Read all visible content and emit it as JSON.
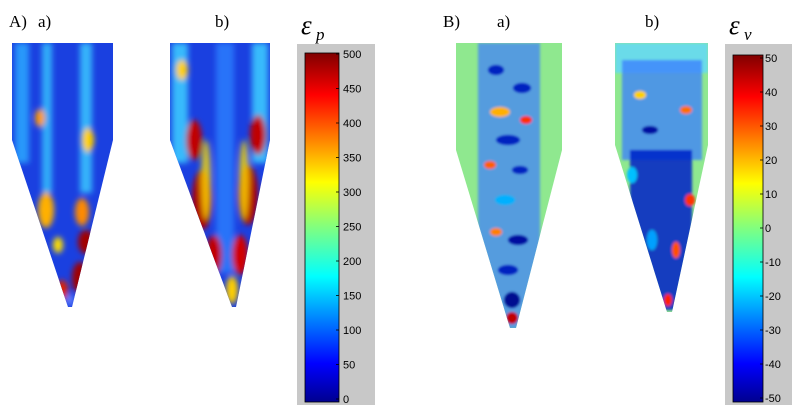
{
  "panel_A": {
    "label": "A)",
    "sub_a": "a)",
    "sub_b": "b)",
    "colorbar": {
      "symbol": "ε",
      "subscript": "p",
      "ticks": [
        "500",
        "450",
        "400",
        "350",
        "300",
        "250",
        "200",
        "150",
        "100",
        "50",
        "0"
      ]
    }
  },
  "panel_B": {
    "label": "B)",
    "sub_a": "a)",
    "sub_b": "b)",
    "colorbar": {
      "symbol": "ε",
      "subscript": "v",
      "ticks": [
        "50",
        "40",
        "30",
        "20",
        "10",
        "0",
        "-10",
        "-20",
        "-30",
        "-40",
        "-50"
      ]
    }
  },
  "colors": {
    "colorbar_frame": "#c8c8c8",
    "jet": [
      "#00008f",
      "#0000ff",
      "#0080ff",
      "#00ffff",
      "#80ff80",
      "#ffff00",
      "#ff8000",
      "#ff0000",
      "#800000"
    ]
  }
}
